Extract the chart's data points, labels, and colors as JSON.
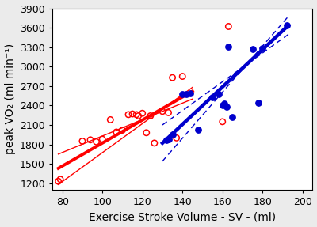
{
  "red_x": [
    78,
    79,
    90,
    94,
    97,
    100,
    104,
    107,
    110,
    113,
    115,
    117,
    118,
    120,
    122,
    124,
    126,
    130,
    133,
    135,
    137,
    140,
    160,
    163
  ],
  "red_y": [
    1230,
    1260,
    1850,
    1870,
    1840,
    1880,
    2180,
    1990,
    2020,
    2260,
    2270,
    2260,
    2240,
    2280,
    1980,
    2240,
    1820,
    2310,
    2290,
    2830,
    1900,
    2850,
    2150,
    3620
  ],
  "blue_x": [
    132,
    133,
    135,
    140,
    142,
    144,
    148,
    155,
    158,
    160,
    161,
    162,
    163,
    165,
    175,
    178,
    180,
    192
  ],
  "blue_y": [
    1870,
    1880,
    1950,
    2580,
    2570,
    2590,
    2030,
    2530,
    2570,
    2400,
    2430,
    2380,
    3310,
    2220,
    3270,
    2440,
    3280,
    3640
  ],
  "red_reg_x0": 78,
  "red_reg_x1": 145,
  "red_reg_y0": 1430,
  "red_reg_y1": 2620,
  "red_upper_x0": 78,
  "red_upper_x1": 145,
  "red_upper_y0": 1180,
  "red_upper_y1": 2680,
  "red_lower_x0": 78,
  "red_lower_x1": 145,
  "red_lower_y0": 1650,
  "red_lower_y1": 2500,
  "blue_reg_x0": 130,
  "blue_reg_x1": 193,
  "blue_reg_y0": 1820,
  "blue_reg_y1": 3640,
  "blue_upper_x0": 130,
  "blue_upper_x1": 193,
  "blue_upper_y0": 1540,
  "blue_upper_y1": 3780,
  "blue_lower_x0": 130,
  "blue_lower_x1": 193,
  "blue_lower_y0": 2100,
  "blue_lower_y1": 3500,
  "red_color": "#FF0000",
  "blue_color": "#0000CC",
  "xlim": [
    75,
    205
  ],
  "ylim": [
    1100,
    3900
  ],
  "xticks": [
    80,
    100,
    120,
    140,
    160,
    180,
    200
  ],
  "yticks": [
    1200,
    1500,
    1800,
    2100,
    2400,
    2700,
    3000,
    3300,
    3600,
    3900
  ],
  "xlabel": "Exercise Stroke Volume - SV - (ml)",
  "ylabel": "peak VO₂ (ml min⁻¹)",
  "xlabel_fontsize": 10,
  "ylabel_fontsize": 10,
  "tick_fontsize": 9,
  "red_linewidth": 2.8,
  "blue_linewidth": 3.2,
  "thin_linewidth": 1.0,
  "marker_size": 28,
  "bg_color": "#ebebeb"
}
